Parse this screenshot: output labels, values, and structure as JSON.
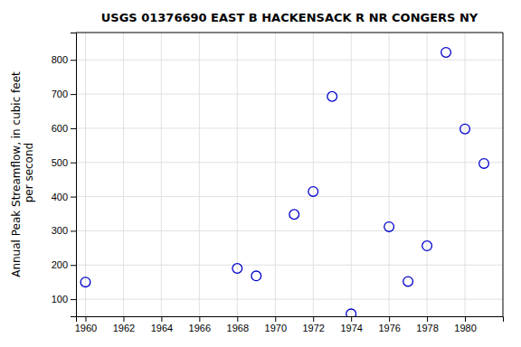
{
  "chart_data": {
    "type": "scatter",
    "title": "USGS 01376690 EAST B HACKENSACK R NR CONGERS NY",
    "ylabel": "Annual Peak Streamflow, in cubic feet\n per second",
    "x": [
      1960,
      1968,
      1969,
      1971,
      1972,
      1973,
      1974,
      1976,
      1977,
      1978,
      1979,
      1980,
      1981
    ],
    "values": [
      150,
      190,
      168,
      348,
      415,
      693,
      57,
      312,
      152,
      256,
      822,
      598,
      497
    ],
    "xlim": [
      1959.5,
      1982
    ],
    "ylim": [
      50,
      880
    ],
    "xticks": [
      1960,
      1962,
      1964,
      1966,
      1968,
      1970,
      1972,
      1974,
      1976,
      1978,
      1980
    ],
    "yticks": [
      100,
      200,
      300,
      400,
      500,
      600,
      700,
      800
    ],
    "color": "#0000cc",
    "marker": "circle",
    "grid": true
  }
}
